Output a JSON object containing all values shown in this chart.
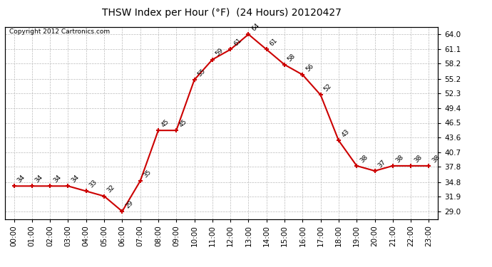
{
  "title": "THSW Index per Hour (°F)  (24 Hours) 20120427",
  "copyright": "Copyright 2012 Cartronics.com",
  "hours": [
    0,
    1,
    2,
    3,
    4,
    5,
    6,
    7,
    8,
    9,
    10,
    11,
    12,
    13,
    14,
    15,
    16,
    17,
    18,
    19,
    20,
    21,
    22,
    23
  ],
  "values": [
    34,
    34,
    34,
    34,
    33,
    32,
    29,
    35,
    45,
    45,
    55,
    59,
    61,
    64,
    61,
    58,
    56,
    52,
    43,
    38,
    37,
    38,
    38,
    38
  ],
  "x_labels": [
    "00:00",
    "01:00",
    "02:00",
    "03:00",
    "04:00",
    "05:00",
    "06:00",
    "07:00",
    "08:00",
    "09:00",
    "10:00",
    "11:00",
    "12:00",
    "13:00",
    "14:00",
    "15:00",
    "16:00",
    "17:00",
    "18:00",
    "19:00",
    "20:00",
    "21:00",
    "22:00",
    "23:00"
  ],
  "y_ticks": [
    29.0,
    31.9,
    34.8,
    37.8,
    40.7,
    43.6,
    46.5,
    49.4,
    52.3,
    55.2,
    58.2,
    61.1,
    64.0
  ],
  "ylim": [
    27.5,
    65.5
  ],
  "line_color": "#cc0000",
  "marker_color": "#cc0000",
  "grid_color": "#bbbbbb",
  "bg_color": "#ffffff",
  "plot_bg_color": "#ffffff",
  "title_fontsize": 10,
  "annotation_fontsize": 6.5,
  "copyright_fontsize": 6.5,
  "tick_fontsize": 7.5
}
